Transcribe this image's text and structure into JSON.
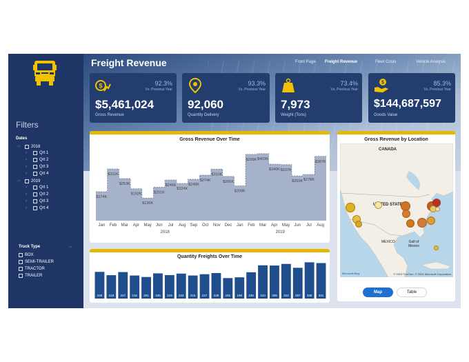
{
  "header": {
    "title": "Freight Revenue",
    "nav": [
      "Front Page",
      "Freight Revenue",
      "Fleet Costs",
      "Vehicle Analysis"
    ],
    "active_nav": "Freight Revenue"
  },
  "sidebar": {
    "filters_title": "Filters",
    "dates_label": "Dates",
    "years": [
      {
        "year": "2018",
        "quarters": [
          "Qrt 1",
          "Qrt 2",
          "Qrt 3",
          "Qrt 4"
        ]
      },
      {
        "year": "2019",
        "quarters": [
          "Qrt 1",
          "Qrt 2",
          "Qrt 3",
          "Qrt 4"
        ]
      }
    ],
    "truck_type_title": "Truck Type",
    "truck_types": [
      "BOX",
      "SEMI-TRAILER",
      "TRACTOR",
      "TRAILER"
    ]
  },
  "kpis": [
    {
      "icon": "money-growth-icon",
      "pct": "92.3%",
      "vs": "Vs. Previous Year",
      "value": "$5,461,024",
      "label": "Gross Revenue"
    },
    {
      "icon": "location-pin-icon",
      "pct": "93.3%",
      "vs": "Vs. Previous Year",
      "value": "92,060",
      "label": "Quantity Delivery"
    },
    {
      "icon": "weight-icon",
      "pct": "73.4%",
      "vs": "Vs. Previous Year",
      "value": "7,973",
      "label": "Weight (Tons)"
    },
    {
      "icon": "hand-money-icon",
      "pct": "85.3%",
      "vs": "Vs. Previous Year",
      "value": "$144,687,597",
      "label": "Goods Value"
    }
  ],
  "chart_data": [
    {
      "type": "area",
      "title": "Gross Revenue Over Time",
      "categories": [
        "Jan",
        "Feb",
        "Mar",
        "Apr",
        "May",
        "Jun",
        "Jul",
        "Aug",
        "Sep",
        "Oct",
        "Nov",
        "Dec",
        "Jan",
        "Feb",
        "Mar",
        "Apr",
        "May",
        "Jun",
        "Jul",
        "Aug"
      ],
      "year_labels": [
        {
          "label": "2018",
          "start": 0,
          "end": 11
        },
        {
          "label": "2019",
          "start": 12,
          "end": 19
        }
      ],
      "values": [
        174,
        311,
        253,
        192,
        136,
        201,
        245,
        224,
        249,
        274,
        310,
        266,
        209,
        399,
        403,
        340,
        337,
        269,
        278,
        387
      ],
      "data_labels": [
        "$174K",
        "$311K",
        "$253K",
        "$192K",
        "$136K",
        "$201K",
        "$245K",
        "$224K",
        "$249K",
        "$274K",
        "$310K",
        "$266K",
        "$209K",
        "$399K",
        "$403K",
        "$340K",
        "$337K",
        "$269K",
        "$278K",
        "$387K"
      ],
      "color": "#a5b2c9"
    },
    {
      "type": "bar",
      "title": "Quantity Freights Over Time",
      "values": [
        249,
        218,
        247,
        215,
        201,
        235,
        219,
        233,
        215,
        227,
        238,
        191,
        198,
        245,
        310,
        308,
        323,
        287,
        338,
        331
      ],
      "color": "#1f4e8c"
    }
  ],
  "map": {
    "title": "Gross Revenue by Location",
    "labels": {
      "canada": "CANADA",
      "us": "UNITED STATES",
      "mexico": "MEXICO",
      "gulf": "Gulf of Mexico"
    },
    "attribution": "© 2023 TomTom, © 2024 Microsoft Corporation",
    "brand": "Microsoft Bing",
    "toggle": [
      "Map",
      "Table"
    ],
    "active_toggle": "Map"
  },
  "colors": {
    "sidebar": "#1f3566",
    "card": "#223d6e",
    "accent": "#e6b800",
    "toggle_active": "#1f6fd1"
  }
}
